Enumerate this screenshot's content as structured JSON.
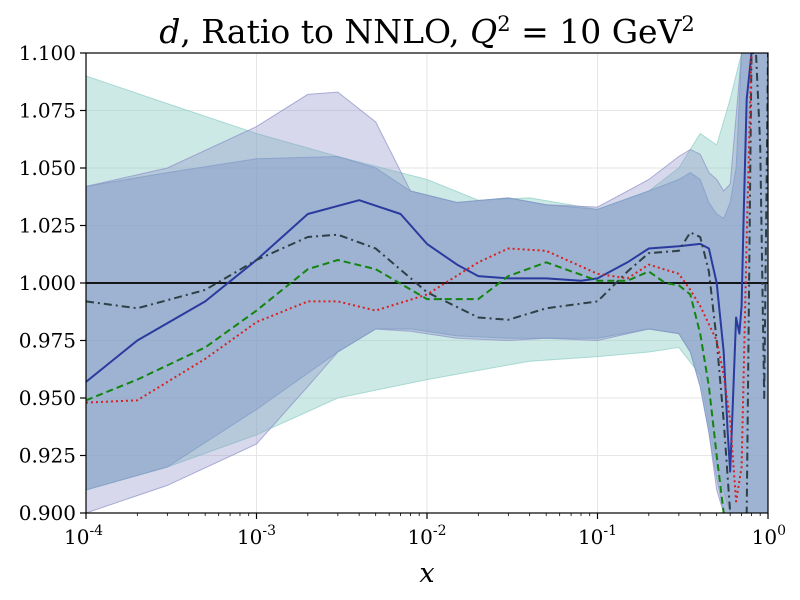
{
  "chart_data": {
    "type": "line",
    "title": {
      "pdf": "d",
      "middle": ", Ratio to NNLO, ",
      "q2": "Q",
      "q2_exp": "2",
      "eq": " = 10 GeV",
      "unit_exp": "2"
    },
    "xlabel": "x",
    "ylabel": "",
    "xscale": "log",
    "xlim": [
      0.0001,
      1
    ],
    "ylim": [
      0.9,
      1.1
    ],
    "grid": true,
    "xticks": [
      {
        "value": 0.0001,
        "base": "10",
        "exp": "-4"
      },
      {
        "value": 0.001,
        "base": "10",
        "exp": "-3"
      },
      {
        "value": 0.01,
        "base": "10",
        "exp": "-2"
      },
      {
        "value": 0.1,
        "base": "10",
        "exp": "-1"
      },
      {
        "value": 1,
        "base": "10",
        "exp": "0"
      }
    ],
    "yticks": [
      {
        "value": 0.9,
        "label": "0.900"
      },
      {
        "value": 0.925,
        "label": "0.925"
      },
      {
        "value": 0.95,
        "label": "0.950"
      },
      {
        "value": 0.975,
        "label": "0.975"
      },
      {
        "value": 1.0,
        "label": "1.000"
      },
      {
        "value": 1.025,
        "label": "1.025"
      },
      {
        "value": 1.05,
        "label": "1.050"
      },
      {
        "value": 1.075,
        "label": "1.075"
      },
      {
        "value": 1.1,
        "label": "1.100"
      }
    ],
    "reference_line": {
      "y": 1.0,
      "color": "#000000"
    },
    "bands": [
      {
        "color": "#8fcfc6",
        "opacity": 0.45,
        "x": [
          0.0001,
          0.0003,
          0.001,
          0.003,
          0.01,
          0.02,
          0.04,
          0.1,
          0.2,
          0.3,
          0.4,
          0.5,
          0.6,
          0.7,
          0.8,
          0.9,
          1.0
        ],
        "upper": [
          1.09,
          1.078,
          1.065,
          1.055,
          1.045,
          1.036,
          1.037,
          1.032,
          1.04,
          1.05,
          1.065,
          1.06,
          1.08,
          1.1,
          1.1,
          1.1,
          1.1
        ],
        "lower": [
          0.91,
          0.92,
          0.934,
          0.95,
          0.958,
          0.962,
          0.966,
          0.968,
          0.97,
          0.972,
          0.96,
          0.92,
          0.9,
          0.9,
          0.9,
          0.9,
          0.9
        ]
      },
      {
        "color": "#8b8fc8",
        "opacity": 0.35,
        "x": [
          0.0001,
          0.0003,
          0.001,
          0.002,
          0.003,
          0.005,
          0.008,
          0.015,
          0.03,
          0.05,
          0.1,
          0.2,
          0.3,
          0.35,
          0.4,
          0.45,
          0.5,
          0.55,
          0.6,
          0.7,
          0.8,
          1.0
        ],
        "upper": [
          1.042,
          1.05,
          1.068,
          1.082,
          1.083,
          1.07,
          1.04,
          1.035,
          1.037,
          1.034,
          1.033,
          1.045,
          1.055,
          1.058,
          1.056,
          1.048,
          1.045,
          1.04,
          1.043,
          1.1,
          1.1,
          1.1
        ],
        "lower": [
          0.9,
          0.912,
          0.93,
          0.955,
          0.97,
          0.98,
          0.979,
          0.976,
          0.975,
          0.976,
          0.975,
          0.98,
          0.978,
          0.97,
          0.955,
          0.935,
          0.91,
          0.9,
          0.9,
          0.9,
          0.9,
          0.9
        ]
      },
      {
        "color": "#7f9ac6",
        "opacity": 0.45,
        "x": [
          0.0001,
          0.0003,
          0.001,
          0.003,
          0.005,
          0.008,
          0.015,
          0.03,
          0.05,
          0.1,
          0.2,
          0.3,
          0.35,
          0.4,
          0.45,
          0.5,
          0.55,
          0.6,
          0.65,
          0.7,
          0.8,
          1.0
        ],
        "upper": [
          1.042,
          1.048,
          1.054,
          1.055,
          1.05,
          1.04,
          1.035,
          1.037,
          1.034,
          1.032,
          1.04,
          1.045,
          1.048,
          1.045,
          1.035,
          1.03,
          1.028,
          1.035,
          1.05,
          1.1,
          1.1,
          1.1
        ],
        "lower": [
          0.91,
          0.92,
          0.945,
          0.97,
          0.98,
          0.98,
          0.977,
          0.976,
          0.976,
          0.976,
          0.98,
          0.978,
          0.97,
          0.955,
          0.935,
          0.915,
          0.9,
          0.9,
          0.9,
          0.9,
          0.9,
          0.9
        ]
      }
    ],
    "series": [
      {
        "color": "#2b3a9e",
        "dash": "solid",
        "width": 2,
        "x": [
          0.0001,
          0.0002,
          0.0005,
          0.001,
          0.002,
          0.004,
          0.007,
          0.01,
          0.015,
          0.02,
          0.03,
          0.05,
          0.08,
          0.1,
          0.15,
          0.2,
          0.3,
          0.4,
          0.45,
          0.5,
          0.55,
          0.58,
          0.6,
          0.62,
          0.65,
          0.68,
          0.7,
          0.72,
          0.75,
          0.8
        ],
        "y": [
          0.957,
          0.975,
          0.992,
          1.01,
          1.03,
          1.036,
          1.03,
          1.017,
          1.008,
          1.003,
          1.002,
          1.002,
          1.001,
          1.002,
          1.009,
          1.015,
          1.016,
          1.017,
          1.015,
          1.0,
          0.97,
          0.935,
          0.918,
          0.945,
          0.985,
          0.978,
          0.99,
          1.03,
          1.08,
          1.1
        ]
      },
      {
        "color": "#2f3f46",
        "dash": "dashdot",
        "width": 2,
        "x": [
          0.0001,
          0.0002,
          0.0005,
          0.001,
          0.002,
          0.003,
          0.005,
          0.01,
          0.02,
          0.03,
          0.05,
          0.1,
          0.15,
          0.2,
          0.3,
          0.35,
          0.4,
          0.45,
          0.5,
          0.55,
          0.6,
          0.65,
          0.7,
          0.75,
          0.8,
          0.85,
          0.9,
          0.95,
          1.0
        ],
        "y": [
          0.992,
          0.989,
          0.997,
          1.01,
          1.02,
          1.021,
          1.015,
          0.996,
          0.985,
          0.984,
          0.989,
          0.992,
          1.005,
          1.013,
          1.014,
          1.022,
          1.02,
          1.005,
          0.975,
          0.94,
          0.9,
          0.88,
          0.88,
          0.9,
          1.1,
          1.1,
          1.06,
          0.95,
          1.1
        ]
      },
      {
        "color": "#13850f",
        "dash": "dashed",
        "width": 2,
        "x": [
          0.0001,
          0.0002,
          0.0005,
          0.001,
          0.002,
          0.003,
          0.005,
          0.01,
          0.02,
          0.03,
          0.05,
          0.1,
          0.15,
          0.2,
          0.25,
          0.3,
          0.35,
          0.4,
          0.45,
          0.5,
          0.55
        ],
        "y": [
          0.949,
          0.958,
          0.972,
          0.988,
          1.006,
          1.01,
          1.006,
          0.993,
          0.993,
          1.003,
          1.009,
          1.001,
          1.001,
          1.005,
          1.0,
          0.999,
          0.995,
          0.978,
          0.955,
          0.925,
          0.9
        ]
      },
      {
        "color": "#d91f1f",
        "dash": "dotted",
        "width": 2,
        "x": [
          0.0001,
          0.0002,
          0.0005,
          0.001,
          0.002,
          0.003,
          0.005,
          0.01,
          0.02,
          0.03,
          0.05,
          0.1,
          0.15,
          0.2,
          0.3,
          0.35,
          0.4,
          0.5,
          0.55,
          0.6,
          0.65,
          0.7,
          0.75,
          0.8
        ],
        "y": [
          0.948,
          0.949,
          0.967,
          0.983,
          0.992,
          0.992,
          0.988,
          0.995,
          1.009,
          1.015,
          1.014,
          1.004,
          1.002,
          1.008,
          1.004,
          0.997,
          0.99,
          0.975,
          0.96,
          0.94,
          0.905,
          0.92,
          1.02,
          1.1
        ]
      }
    ]
  }
}
